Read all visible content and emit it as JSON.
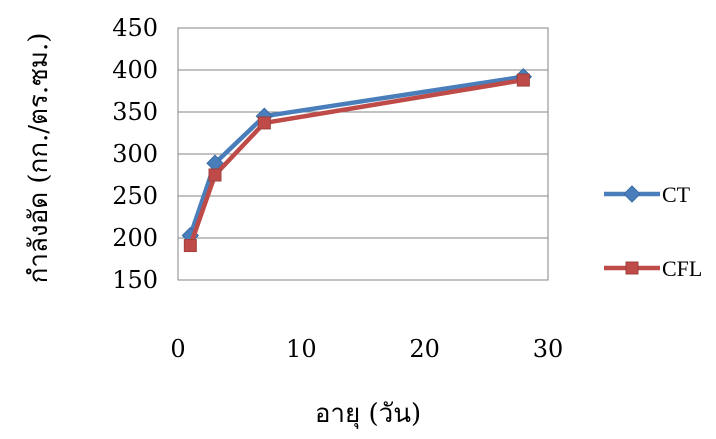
{
  "chart_data": {
    "type": "line",
    "xlabel": "อายุ (วัน)",
    "ylabel": "กำลังอัด   (กก./ตร.ซม.)",
    "xlim": [
      0,
      30
    ],
    "ylim": [
      150,
      450
    ],
    "xticks": [
      0,
      10,
      20,
      30
    ],
    "yticks": [
      150,
      200,
      250,
      300,
      350,
      400,
      450
    ],
    "y_gridlines": true,
    "legend_position": "right",
    "series": [
      {
        "name": "CT",
        "color": "#4a7ebb",
        "marker": "diamond",
        "x": [
          1,
          3,
          7,
          28
        ],
        "y": [
          203,
          289,
          345,
          392
        ]
      },
      {
        "name": "CFL",
        "color": "#be4b48",
        "marker": "square",
        "x": [
          1,
          3,
          7,
          28
        ],
        "y": [
          191,
          275,
          337,
          388
        ]
      }
    ]
  }
}
